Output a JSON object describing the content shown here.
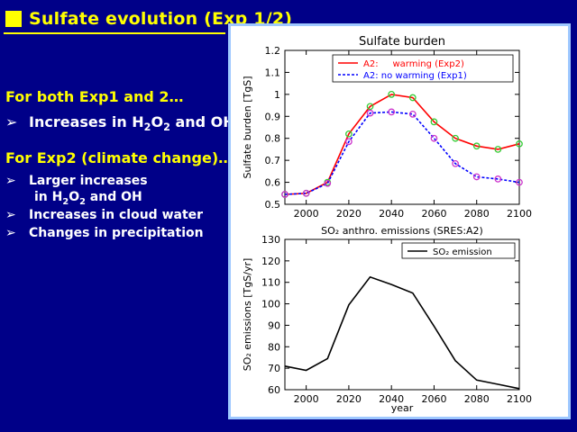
{
  "slide": {
    "title": "Sulfate evolution (Exp 1/2)",
    "heading1": "For both Exp1 and 2…",
    "bullet1": {
      "pre": "Increases in H",
      "sub1": "2",
      "mid1": "O",
      "sub2": "2",
      "post": " and OH"
    },
    "heading2": "For Exp2 (climate change)…",
    "bullet2_line1": "Larger increases",
    "bullet2_line2": {
      "pre": "in H",
      "sub1": "2",
      "mid1": "O",
      "sub2": "2",
      "post": " and OH"
    },
    "bullet3": "Increases in cloud water",
    "bullet4": "Changes in precipitation",
    "arrow": "➢"
  },
  "chart_data": [
    {
      "type": "line",
      "title": "Sulfate burden",
      "ylabel": "Sulfate burden [TgS]",
      "xlim": [
        1990,
        2100
      ],
      "ylim": [
        0.5,
        1.2
      ],
      "xticks": [
        2000,
        2020,
        2040,
        2060,
        2080,
        2100
      ],
      "yticks": [
        0.5,
        0.6,
        0.7,
        0.8,
        0.9,
        1,
        1.1,
        1.2
      ],
      "legend": "top-right",
      "series": [
        {
          "name": "A2:     warming (Exp2)",
          "color": "#ff0000",
          "marker_color": "#33cc33",
          "x": [
            1990,
            2000,
            2010,
            2020,
            2030,
            2040,
            2050,
            2060,
            2070,
            2080,
            2090,
            2100
          ],
          "values": [
            0.545,
            0.55,
            0.6,
            0.82,
            0.945,
            1.0,
            0.985,
            0.875,
            0.8,
            0.765,
            0.75,
            0.775
          ]
        },
        {
          "name": "A2: no warming (Exp1)",
          "color": "#0000ff",
          "marker_color": "#cc33cc",
          "x": [
            1990,
            2000,
            2010,
            2020,
            2030,
            2040,
            2050,
            2060,
            2070,
            2080,
            2090,
            2100
          ],
          "values": [
            0.545,
            0.55,
            0.595,
            0.785,
            0.915,
            0.92,
            0.91,
            0.8,
            0.685,
            0.625,
            0.615,
            0.6
          ]
        }
      ]
    },
    {
      "type": "line",
      "title": "SO₂ anthro. emissions (SRES:A2)",
      "xlabel": "year",
      "ylabel": "SO₂ emissions [TgS/yr]",
      "xlim": [
        1990,
        2100
      ],
      "ylim": [
        60,
        130
      ],
      "xticks": [
        2000,
        2020,
        2040,
        2060,
        2080,
        2100
      ],
      "yticks": [
        60,
        70,
        80,
        90,
        100,
        110,
        120,
        130
      ],
      "legend": "top-right",
      "series": [
        {
          "name": "SO₂ emission",
          "color": "#000000",
          "x": [
            1990,
            2000,
            2010,
            2020,
            2030,
            2040,
            2050,
            2060,
            2070,
            2080,
            2090,
            2100
          ],
          "values": [
            71,
            69,
            74.5,
            99.5,
            112.5,
            109,
            105,
            89.5,
            73.5,
            64.5,
            62.5,
            60.5
          ]
        }
      ]
    }
  ]
}
